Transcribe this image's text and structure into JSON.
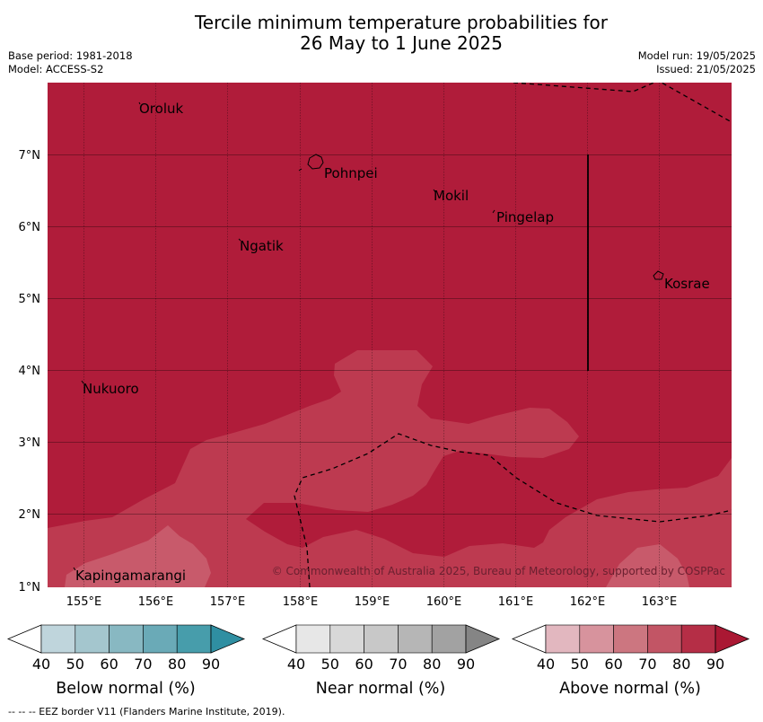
{
  "header": {
    "title_line1": "Tercile minimum temperature probabilities for",
    "title_line2": "26 May to 1 June 2025",
    "base_period": "Base period: 1981-2018",
    "model": "Model: ACCESS-S2",
    "model_run": "Model run: 19/05/2025",
    "issued": "Issued: 21/05/2025"
  },
  "map": {
    "lon_labels": [
      "155°E",
      "156°E",
      "157°E",
      "158°E",
      "159°E",
      "160°E",
      "161°E",
      "162°E",
      "163°E"
    ],
    "lat_labels": [
      "7°N",
      "6°N",
      "5°N",
      "4°N",
      "3°N",
      "2°N",
      "1°N"
    ],
    "places": [
      "Oroluk",
      "Pohnpei",
      "Mokil",
      "Pingelap",
      "Ngatik",
      "Kosrae",
      "Nukuoro",
      "Kapingamarangi"
    ],
    "copyright": "© Commonwealth of Australia 2025, Bureau of Meteorology, supported by COSPPac",
    "colors": {
      "above_80_90": "#b01c3a",
      "above_70_80": "#bd3a50",
      "above_60_70": "#c85a6b"
    }
  },
  "legend": {
    "ticks": [
      "40",
      "50",
      "60",
      "70",
      "80",
      "90"
    ],
    "below_label": "Below normal (%)",
    "near_label": "Near normal (%)",
    "above_label": "Above normal (%)",
    "below_colors": [
      "#bfd5dc",
      "#a4c6ce",
      "#88b8c2",
      "#6aaab7",
      "#479dab",
      "#2f8fa2"
    ],
    "near_colors": [
      "#e7e7e7",
      "#d8d8d8",
      "#c8c8c8",
      "#b6b6b6",
      "#a2a2a2",
      "#858585"
    ],
    "above_colors": [
      "#e2b7bf",
      "#d7939d",
      "#cc7680",
      "#c25565",
      "#b52e46",
      "#aa1833"
    ]
  },
  "footer": {
    "text": "--  --  -- EEZ border V11 (Flanders Marine Institute, 2019)."
  }
}
